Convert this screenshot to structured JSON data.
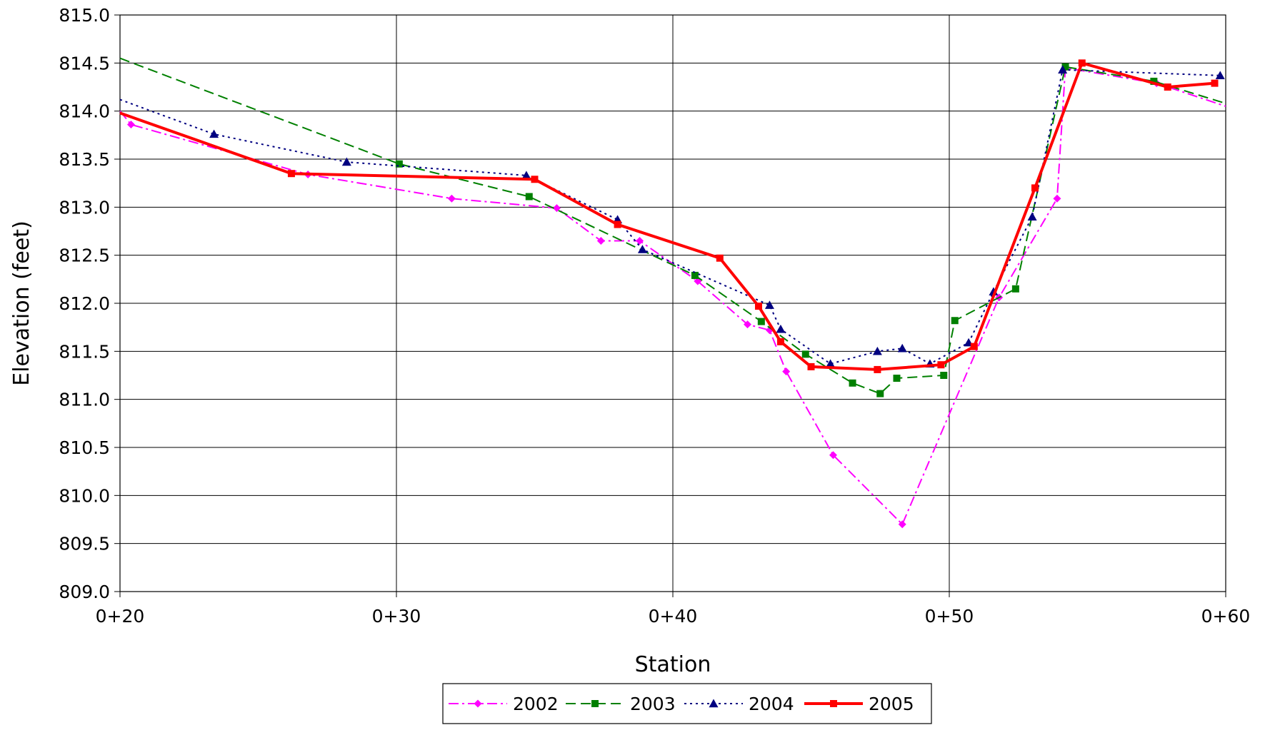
{
  "chart_data": {
    "type": "line",
    "title": "",
    "xlabel": "Station",
    "ylabel": "Elevation (feet)",
    "xlim": [
      20,
      60
    ],
    "ylim": [
      809.0,
      815.0
    ],
    "x_ticks": [
      {
        "value": 20,
        "label": "0+20"
      },
      {
        "value": 30,
        "label": "0+30"
      },
      {
        "value": 40,
        "label": "0+40"
      },
      {
        "value": 50,
        "label": "0+50"
      },
      {
        "value": 60,
        "label": "0+60"
      }
    ],
    "y_ticks": [
      {
        "value": 815.0,
        "label": "815.0"
      },
      {
        "value": 814.5,
        "label": "814.5"
      },
      {
        "value": 814.0,
        "label": "814.0"
      },
      {
        "value": 813.5,
        "label": "813.5"
      },
      {
        "value": 813.0,
        "label": "813.0"
      },
      {
        "value": 812.5,
        "label": "812.5"
      },
      {
        "value": 812.0,
        "label": "812.0"
      },
      {
        "value": 811.5,
        "label": "811.5"
      },
      {
        "value": 811.0,
        "label": "811.0"
      },
      {
        "value": 810.5,
        "label": "810.5"
      },
      {
        "value": 810.0,
        "label": "810.0"
      },
      {
        "value": 809.5,
        "label": "809.5"
      },
      {
        "value": 809.0,
        "label": "809.0"
      }
    ],
    "grid": true,
    "legend_position": "bottom",
    "series": [
      {
        "name": "2002",
        "color": "#ff00ff",
        "dash": "dashdot",
        "marker": "diamond",
        "points": [
          [
            20.0,
            814.0
          ],
          [
            20.4,
            813.86
          ],
          [
            26.8,
            813.34
          ],
          [
            32.0,
            813.09
          ],
          [
            35.8,
            812.99
          ],
          [
            37.4,
            812.65
          ],
          [
            38.8,
            812.65
          ],
          [
            40.9,
            812.23
          ],
          [
            42.7,
            811.78
          ],
          [
            43.5,
            811.72
          ],
          [
            44.1,
            811.29
          ],
          [
            45.8,
            810.42
          ],
          [
            48.3,
            809.7
          ],
          [
            51.8,
            812.06
          ],
          [
            53.9,
            813.09
          ],
          [
            54.2,
            814.45
          ],
          [
            57.5,
            814.29
          ],
          [
            60.0,
            814.05
          ]
        ]
      },
      {
        "name": "2003",
        "color": "#008000",
        "dash": "dash",
        "marker": "square",
        "points": [
          [
            20.0,
            814.55
          ],
          [
            30.1,
            813.45
          ],
          [
            34.8,
            813.11
          ],
          [
            40.8,
            812.29
          ],
          [
            43.2,
            811.81
          ],
          [
            44.8,
            811.47
          ],
          [
            46.5,
            811.17
          ],
          [
            47.5,
            811.06
          ],
          [
            48.1,
            811.22
          ],
          [
            49.8,
            811.25
          ],
          [
            50.2,
            811.82
          ],
          [
            52.4,
            812.15
          ],
          [
            54.2,
            814.46
          ],
          [
            57.4,
            814.31
          ],
          [
            60.0,
            814.08
          ]
        ]
      },
      {
        "name": "2004",
        "color": "#000080",
        "dash": "dot",
        "marker": "triangle",
        "points": [
          [
            20.0,
            814.12
          ],
          [
            23.4,
            813.76
          ],
          [
            28.2,
            813.47
          ],
          [
            34.7,
            813.33
          ],
          [
            38.0,
            812.87
          ],
          [
            38.9,
            812.56
          ],
          [
            43.5,
            811.98
          ],
          [
            43.9,
            811.73
          ],
          [
            45.7,
            811.37
          ],
          [
            47.4,
            811.5
          ],
          [
            48.3,
            811.53
          ],
          [
            49.3,
            811.37
          ],
          [
            50.7,
            811.59
          ],
          [
            51.6,
            812.12
          ],
          [
            53.0,
            812.9
          ],
          [
            54.1,
            814.43
          ],
          [
            59.8,
            814.37
          ]
        ]
      },
      {
        "name": "2005",
        "color": "#ff0000",
        "dash": "solid",
        "marker": "square",
        "points": [
          [
            20.0,
            813.98
          ],
          [
            26.2,
            813.35
          ],
          [
            35.0,
            813.29
          ],
          [
            38.0,
            812.82
          ],
          [
            41.7,
            812.47
          ],
          [
            43.1,
            811.97
          ],
          [
            43.9,
            811.6
          ],
          [
            45.0,
            811.34
          ],
          [
            47.4,
            811.31
          ],
          [
            49.7,
            811.36
          ],
          [
            50.9,
            811.55
          ],
          [
            53.1,
            813.2
          ],
          [
            54.8,
            814.5
          ],
          [
            57.9,
            814.25
          ],
          [
            59.6,
            814.29
          ]
        ]
      }
    ]
  }
}
